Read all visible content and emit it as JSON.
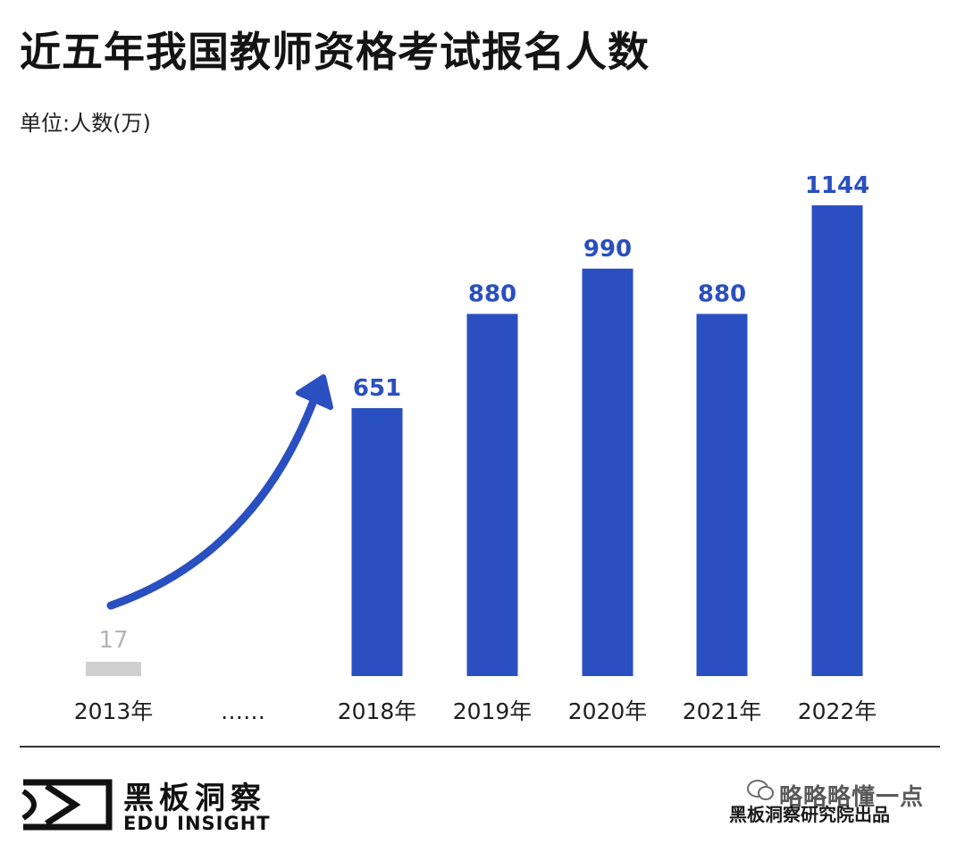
{
  "chart_data": {
    "type": "bar",
    "title": "近五年我国教师资格考试报名人数",
    "unit_label": "单位:人数(万)",
    "categories": [
      "2013年",
      "……",
      "2018年",
      "2019年",
      "2020年",
      "2021年",
      "2022年"
    ],
    "values": [
      17,
      null,
      651,
      880,
      990,
      880,
      1144
    ],
    "ylim": [
      0,
      1200
    ],
    "colors": {
      "bar": "#2a4fc0",
      "bar_muted": "#cfcfcf",
      "label": "#2a4fc0",
      "label_muted": "#b4b4b4",
      "arrow": "#2a4fc0"
    },
    "annotations": [
      "growth-arrow from 2013 to 2018"
    ]
  },
  "footer": {
    "logo_cn": "黑板洞察",
    "logo_en": "EDU INSIGHT",
    "watermark": "略略略懂一点",
    "watermark_icon": "wechat-icon",
    "credit": "黑板洞察研究院出品"
  }
}
